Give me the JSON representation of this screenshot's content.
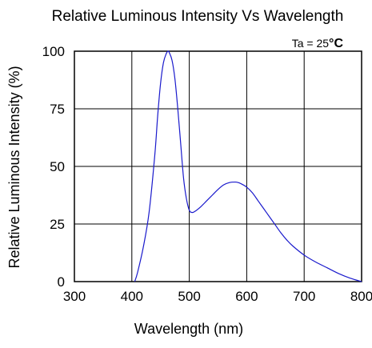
{
  "chart_data": {
    "type": "line",
    "title": "Relative Luminous Intensity Vs Wavelength",
    "xlabel": "Wavelength (nm)",
    "ylabel": "Relative Luminous Intensity (%)",
    "annotation": {
      "prefix": "Ta = 25",
      "unit": "°C"
    },
    "xlim": [
      300,
      800
    ],
    "ylim": [
      0,
      100
    ],
    "xticks": [
      300,
      400,
      500,
      600,
      700,
      800
    ],
    "yticks": [
      0,
      25,
      50,
      75,
      100
    ],
    "grid": true,
    "line_color": "#1a1acc",
    "series": [
      {
        "x": [
          405,
          410,
          420,
          430,
          440,
          445,
          450,
          455,
          460,
          463,
          465,
          470,
          475,
          480,
          485,
          490,
          495,
          500,
          505,
          510,
          520,
          530,
          540,
          550,
          560,
          570,
          580,
          585,
          590,
          600,
          610,
          620,
          630,
          640,
          650,
          660,
          670,
          680,
          700,
          720,
          740,
          760,
          780,
          800
        ],
        "values": [
          0,
          4,
          15,
          30,
          55,
          72,
          86,
          95,
          99,
          100,
          99.5,
          96,
          88,
          75,
          60,
          45,
          36,
          31,
          30,
          30.5,
          32.5,
          35,
          37.5,
          40,
          42,
          43,
          43.2,
          43,
          42.5,
          41,
          38.5,
          35,
          31.5,
          28,
          24.5,
          21,
          18,
          15.5,
          11.5,
          8.5,
          6,
          3.5,
          1.5,
          0
        ]
      }
    ]
  }
}
